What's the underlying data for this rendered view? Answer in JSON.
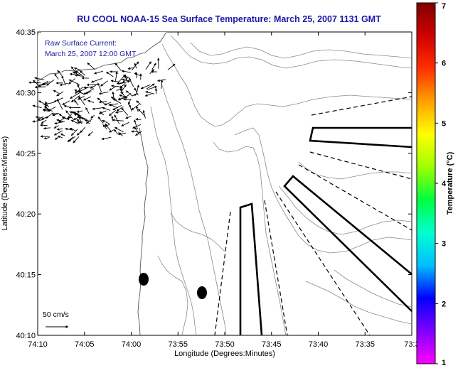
{
  "title": "RU COOL  NOAA-15  Sea Surface Temperature:  March 25, 2007 1131 GMT",
  "note": {
    "line1": "Raw Surface Current:",
    "line2": "March 25, 2007 12:00 GMT"
  },
  "scale_label": "50 cm/s",
  "x_axis": {
    "label": "Longitude (Degrees:Minutes)",
    "ticks": [
      "74:10",
      "74:05",
      "74:00",
      "73:55",
      "73:50",
      "73:45",
      "73:40",
      "73:35",
      "73:3"
    ]
  },
  "y_axis": {
    "label": "Latitude (Degrees:Minutes)",
    "ticks": [
      "40:10",
      "40:15",
      "40:20",
      "40:25",
      "40:30",
      "40:35"
    ]
  },
  "colorbar": {
    "label": "Temperature (°C)",
    "ticks": [
      "1",
      "2",
      "3",
      "4",
      "5",
      "6",
      "7"
    ],
    "colors": [
      "#ff00ff",
      "#7f00ff",
      "#0000ff",
      "#00bfff",
      "#00ffd0",
      "#00ff40",
      "#9fff00",
      "#ffff00",
      "#ffa000",
      "#ff3000",
      "#d00000",
      "#800000"
    ]
  }
}
